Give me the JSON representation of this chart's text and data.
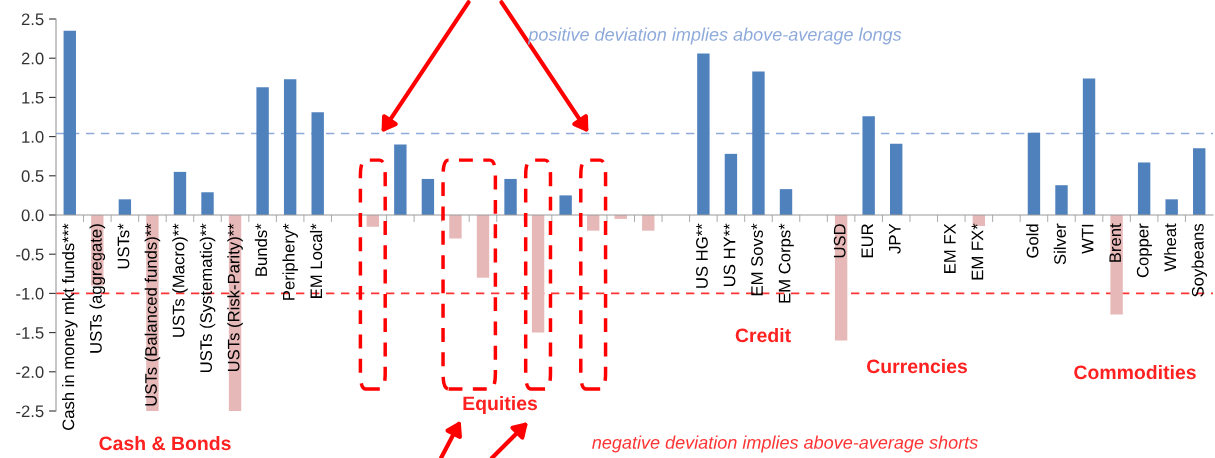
{
  "chart_data": {
    "type": "bar",
    "categories": [
      "Cash in money mkt funds***",
      "USTs (aggregate)",
      "USTs*",
      "USTs (Balanced funds)**",
      "USTs (Macro)**",
      "USTs (Systematic)**",
      "USTs (Risk-Parity)**",
      "Bunds*",
      "Periphery*",
      "EM Local*",
      null,
      null,
      null,
      null,
      null,
      null,
      null,
      null,
      null,
      null,
      null,
      null,
      null,
      "US HG**",
      "US HY**",
      "EM Sovs*",
      "EM Corps*",
      null,
      "USD",
      "EUR",
      "JPY",
      null,
      "EM FX",
      "EM FX*",
      null,
      "Gold",
      "Silver",
      "WTI",
      "Brent",
      "Copper",
      "Wheat",
      "Soybeans"
    ],
    "values": [
      2.35,
      -0.9,
      0.2,
      -2.5,
      0.55,
      0.29,
      -2.5,
      1.63,
      1.73,
      1.31,
      null,
      -0.15,
      0.9,
      0.46,
      -0.3,
      -0.8,
      0.46,
      -1.5,
      0.25,
      -0.2,
      -0.05,
      -0.2,
      null,
      2.06,
      0.78,
      1.83,
      0.33,
      null,
      -1.6,
      1.26,
      0.91,
      null,
      0,
      -0.14,
      null,
      1.05,
      0.38,
      1.74,
      -1.27,
      0.67,
      0.2,
      0.85
    ],
    "colors": [
      "#4f81bd",
      "#e6b9b8",
      "#4f81bd",
      "#e6b9b8",
      "#4f81bd",
      "#4f81bd",
      "#e6b9b8",
      "#4f81bd",
      "#4f81bd",
      "#4f81bd",
      "#4f81bd",
      "#e6b9b8",
      "#4f81bd",
      "#4f81bd",
      "#e6b9b8",
      "#e6b9b8",
      "#4f81bd",
      "#e6b9b8",
      "#4f81bd",
      "#e6b9b8",
      "#e6b9b8",
      "#e6b9b8",
      "#4f81bd",
      "#4f81bd",
      "#4f81bd",
      "#4f81bd",
      "#4f81bd",
      "#4f81bd",
      "#e6b9b8",
      "#4f81bd",
      "#4f81bd",
      "#4f81bd",
      "#4f81bd",
      "#e6b9b8",
      "#4f81bd",
      "#4f81bd",
      "#4f81bd",
      "#4f81bd",
      "#e6b9b8",
      "#4f81bd",
      "#4f81bd",
      "#4f81bd"
    ],
    "ylim": [
      -2.5,
      2.5
    ],
    "yticks": [
      {
        "value": -2.5,
        "label": "-2.5"
      },
      {
        "value": -2.0,
        "label": "-2.0"
      },
      {
        "value": -1.5,
        "label": "-1.5"
      },
      {
        "value": -1.0,
        "label": "-1.0"
      },
      {
        "value": -0.5,
        "label": "-0.5"
      },
      {
        "value": 0,
        "label": "0.0"
      },
      {
        "value": 0.5,
        "label": "0.5"
      },
      {
        "value": 1.0,
        "label": "1.0"
      },
      {
        "value": 1.5,
        "label": "1.5"
      },
      {
        "value": 2.0,
        "label": "2.0"
      },
      {
        "value": 2.5,
        "label": "2.5"
      }
    ],
    "ref_lines": [
      {
        "axis": "y",
        "value": 1.04,
        "label": "positive deviation implies above-average longs",
        "color": "#8eaadb",
        "line_style": "dashed"
      },
      {
        "axis": "y",
        "value": -1.0,
        "label": "negative deviation implies above-average shorts",
        "color": "#ff3333",
        "line_style": "dashed"
      }
    ],
    "annotations": [
      "Cash & Bonds",
      "Equities",
      "Credit",
      "Currencies",
      "Commodities"
    ]
  }
}
